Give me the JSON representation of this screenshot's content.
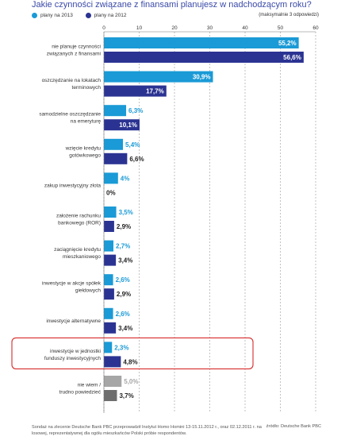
{
  "title": "Jakie czynności związane z finansami planujesz w nadchodzącym roku?",
  "note": "(maksymalnie 3 odpowiedzi)",
  "footnote": "Sondaż na zlecenie Deutsche Bank PBC przeprowadził Instytut Homo Homini 13-15.11.2012 r., oraz 02.12.2011 r. na losowej, reprezentatywnej dla ogółu mieszkańców Polski próbie respondentów.",
  "source": "źródło: Deutsche Bank PBC",
  "colors": {
    "s2013": "#1a9ad6",
    "s2012": "#2b3392",
    "other": "#a6a6a6",
    "other_dark": "#6e6e6e",
    "highlight": "#d62b2b"
  },
  "chart_data": {
    "type": "bar",
    "orientation": "horizontal",
    "xlim": [
      0,
      60
    ],
    "ticks": [
      0,
      10,
      20,
      30,
      40,
      50,
      60
    ],
    "legend_position": "top-left",
    "grid": true,
    "series": [
      {
        "name": "plany na 2013",
        "color": "#1a9ad6"
      },
      {
        "name": "plany na 2012",
        "color": "#2b3392"
      }
    ],
    "categories": [
      {
        "label": [
          "nie planuje czynności",
          "związanych z finansami"
        ],
        "v2013": 55.2,
        "v2012": 56.6,
        "l2013": "55,2%",
        "l2012": "56,6%"
      },
      {
        "label": [
          "oszczędzanie na lokatach",
          "terminowych"
        ],
        "v2013": 30.9,
        "v2012": 17.7,
        "l2013": "30,9%",
        "l2012": "17,7%"
      },
      {
        "label": [
          "samodzielne oszczędzanie",
          "na emeryturę"
        ],
        "v2013": 6.3,
        "v2012": 10.1,
        "l2013": "6,3%",
        "l2012": "10,1%"
      },
      {
        "label": [
          "wzięcie kredytu",
          "gotówkowego"
        ],
        "v2013": 5.4,
        "v2012": 6.6,
        "l2013": "5,4%",
        "l2012": "6,6%"
      },
      {
        "label": [
          "zakup inwestycyjny złota"
        ],
        "v2013": 4,
        "v2012": 0,
        "l2013": "4%",
        "l2012": "0%"
      },
      {
        "label": [
          "założenie rachunku",
          "bankowego (ROR)"
        ],
        "v2013": 3.5,
        "v2012": 2.9,
        "l2013": "3,5%",
        "l2012": "2,9%"
      },
      {
        "label": [
          "zaciągnięcie kredytu",
          "mieszkaniowego"
        ],
        "v2013": 2.7,
        "v2012": 3.4,
        "l2013": "2,7%",
        "l2012": "3,4%"
      },
      {
        "label": [
          "inwestycje w akcje spółek",
          "giełdowych"
        ],
        "v2013": 2.6,
        "v2012": 2.9,
        "l2013": "2,6%",
        "l2012": "2,9%"
      },
      {
        "label": [
          "inwestycje alternatywne"
        ],
        "v2013": 2.6,
        "v2012": 3.4,
        "l2013": "2,6%",
        "l2012": "3,4%"
      },
      {
        "label": [
          "inwestycje w jednostki",
          "funduszy inwestycyjnych"
        ],
        "v2013": 2.3,
        "v2012": 4.8,
        "l2013": "2,3%",
        "l2012": "4,8%",
        "highlight": true
      },
      {
        "label": [
          "nie wiem /",
          "trudno powiedzieć"
        ],
        "v2013": 5.0,
        "v2012": 3.7,
        "l2013": "5,0%",
        "l2012": "3,7%",
        "grey": true
      }
    ]
  }
}
